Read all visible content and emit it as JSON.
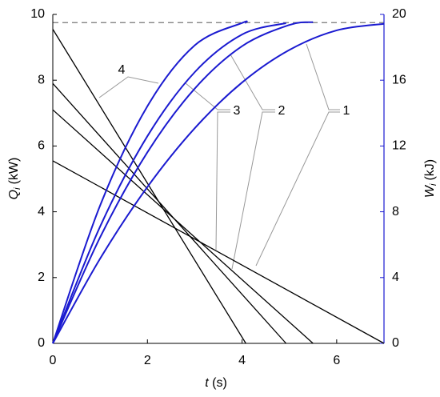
{
  "chart_data": {
    "type": "line",
    "x_label": {
      "symbol": "t",
      "unit": "(s)"
    },
    "y_label": {
      "symbol": "Q",
      "subscript": "i",
      "unit": "(kW)"
    },
    "y2_label": {
      "symbol": "W",
      "subscript": "i",
      "unit": "(kJ)"
    },
    "xlim": [
      0,
      7
    ],
    "xticks": [
      0,
      2,
      4,
      6
    ],
    "ylim": [
      0,
      10
    ],
    "yticks": [
      0,
      2,
      4,
      6,
      8,
      10
    ],
    "y2lim": [
      0,
      20
    ],
    "y2ticks": [
      0,
      4,
      8,
      12,
      16,
      20
    ],
    "reference_line": {
      "value": 19.5,
      "axis": "y2",
      "color": "#777777"
    },
    "series": [
      {
        "x": [
          0,
          7
        ],
        "values": [
          5.55,
          0
        ],
        "color": "#000000"
      },
      {
        "x": [
          0,
          5.5
        ],
        "values": [
          7.1,
          0
        ],
        "color": "#000000"
      },
      {
        "x": [
          0,
          4.93
        ],
        "values": [
          7.9,
          0
        ],
        "color": "#000000"
      },
      {
        "x": [
          0,
          4.08
        ],
        "values": [
          9.55,
          0
        ],
        "color": "#000000"
      },
      {
        "x": [
          0,
          1,
          2,
          3,
          4,
          5,
          6,
          7
        ],
        "values": [
          0,
          5.15,
          9.51,
          13.08,
          15.86,
          17.84,
          19.03,
          19.43
        ],
        "color": "#1a1ad0",
        "axis": "y2"
      },
      {
        "x": [
          0,
          1,
          2,
          3,
          4,
          5,
          5.5
        ],
        "values": [
          0,
          6.45,
          11.62,
          15.49,
          18.07,
          19.36,
          19.53
        ],
        "color": "#1a1ad0",
        "axis": "y2"
      },
      {
        "x": [
          0,
          1,
          2,
          3,
          4,
          4.93
        ],
        "values": [
          0,
          7.1,
          12.6,
          16.49,
          18.78,
          19.47
        ],
        "color": "#1a1ad0",
        "axis": "y2"
      },
      {
        "x": [
          0,
          1,
          2,
          3,
          4,
          4.08
        ],
        "values": [
          0,
          8.38,
          14.42,
          18.12,
          19.48,
          19.48
        ],
        "color": "#1a1ad0",
        "axis": "y2"
      }
    ],
    "annotations": [
      "1",
      "2",
      "3",
      "4"
    ]
  }
}
